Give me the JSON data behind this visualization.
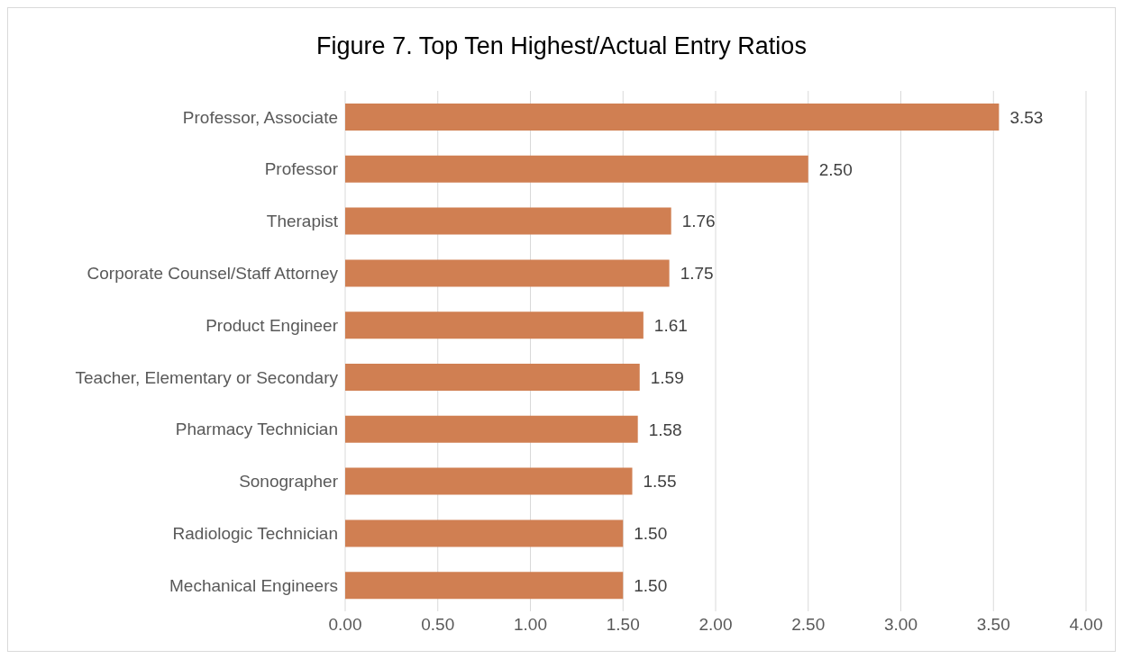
{
  "chart_data": {
    "type": "bar",
    "orientation": "horizontal",
    "title": "Figure 7. Top Ten Highest/Actual Entry Ratios",
    "categories": [
      "Professor, Associate",
      "Professor",
      "Therapist",
      "Corporate Counsel/Staff Attorney",
      "Product Engineer",
      "Teacher, Elementary or Secondary",
      "Pharmacy Technician",
      "Sonographer",
      "Radiologic Technician",
      "Mechanical Engineers"
    ],
    "values": [
      3.53,
      2.5,
      1.76,
      1.75,
      1.61,
      1.59,
      1.58,
      1.55,
      1.5,
      1.5
    ],
    "value_labels": [
      "3.53",
      "2.50",
      "1.76",
      "1.75",
      "1.61",
      "1.59",
      "1.58",
      "1.55",
      "1.50",
      "1.50"
    ],
    "color": "#d07f52",
    "xlim": [
      0,
      4
    ],
    "xticks": [
      {
        "value": 0,
        "label": "0.00"
      },
      {
        "value": 0.5,
        "label": "0.50"
      },
      {
        "value": 1,
        "label": "1.00"
      },
      {
        "value": 1.5,
        "label": "1.50"
      },
      {
        "value": 2,
        "label": "2.00"
      },
      {
        "value": 2.5,
        "label": "2.50"
      },
      {
        "value": 3,
        "label": "3.00"
      },
      {
        "value": 3.5,
        "label": "3.50"
      },
      {
        "value": 4,
        "label": "4.00"
      }
    ],
    "grid": "x",
    "legend": false
  }
}
